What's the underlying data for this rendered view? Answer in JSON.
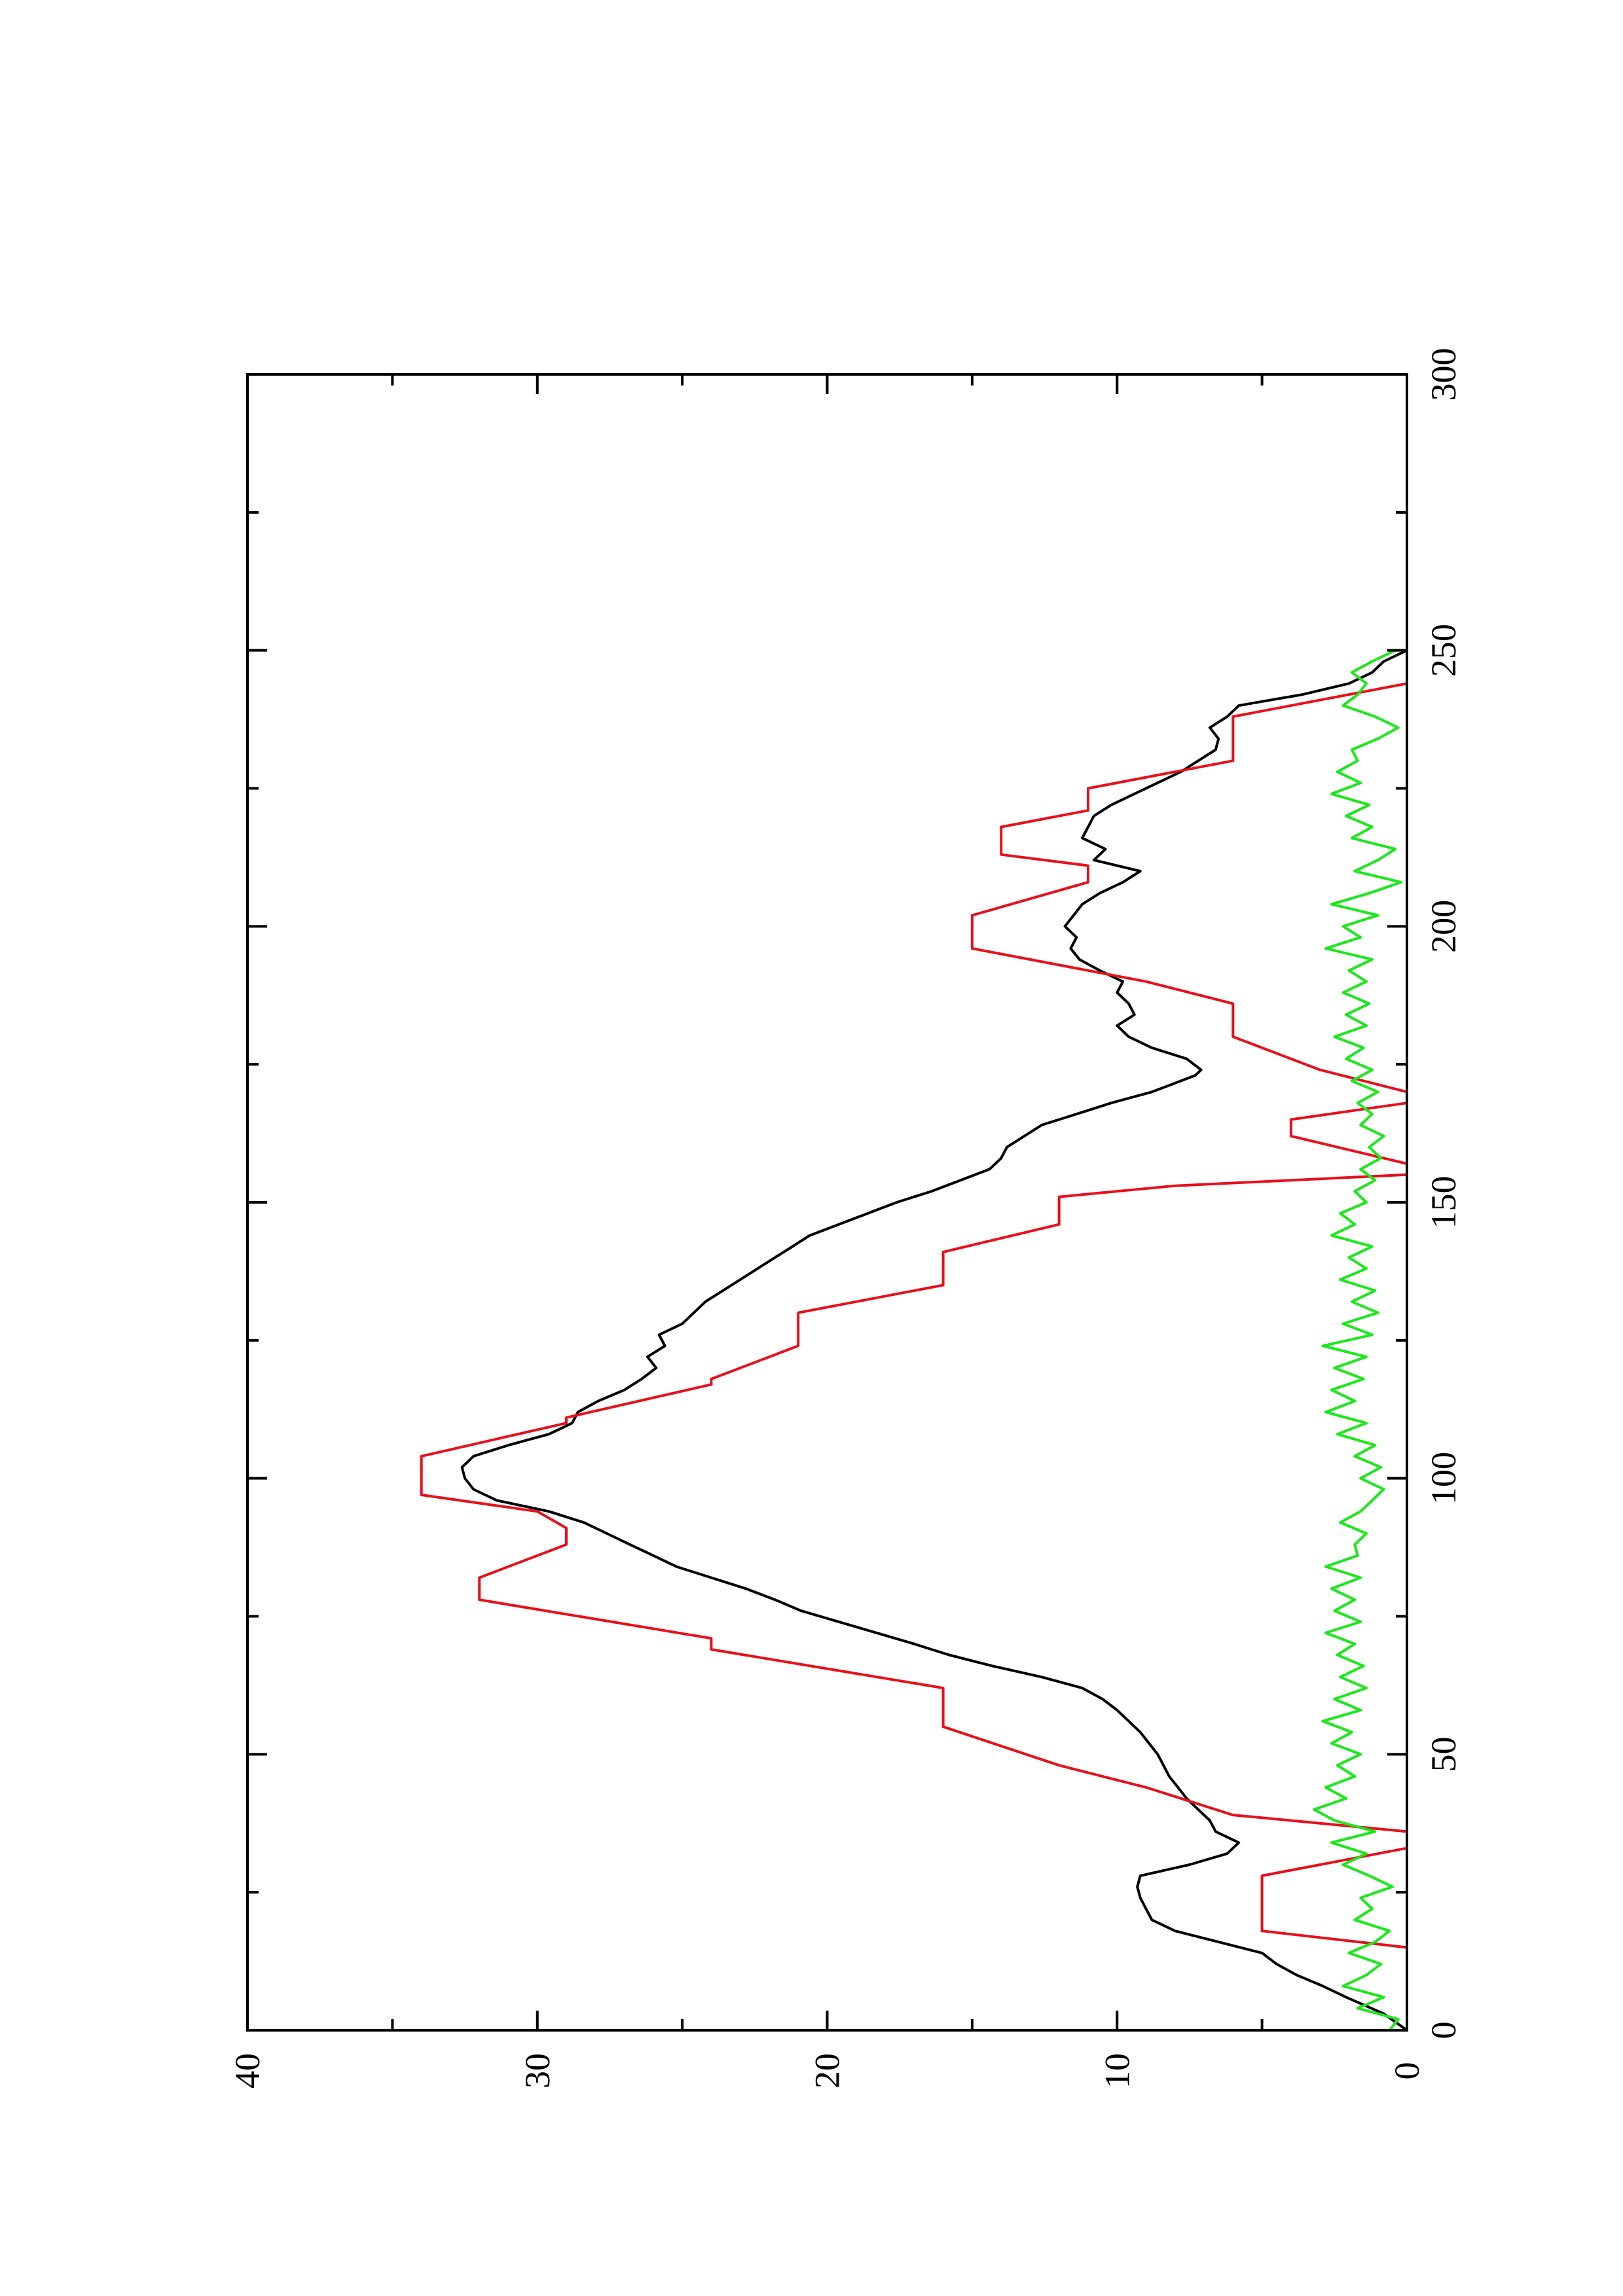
{
  "chart_data": {
    "type": "line",
    "orientation": "rotated 90 degrees counter-clockwise (x axis drawn vertically, increasing upward; y axis drawn horizontally, increasing to the left)",
    "title": "",
    "xlabel": "",
    "ylabel": "",
    "xlim": [
      0,
      300
    ],
    "ylim": [
      0,
      40
    ],
    "x_ticks": [
      0,
      50,
      100,
      150,
      200,
      250,
      300
    ],
    "y_ticks": [
      0,
      10,
      20,
      30,
      40
    ],
    "grid": false,
    "legend": "none",
    "series": [
      {
        "color": "#000000",
        "style": "smooth line",
        "points": [
          [
            0,
            0
          ],
          [
            3,
            0.8
          ],
          [
            6,
            2.1
          ],
          [
            8,
            2.9
          ],
          [
            10,
            3.8
          ],
          [
            12,
            4.5
          ],
          [
            14,
            5.0
          ],
          [
            16,
            6.5
          ],
          [
            18,
            8.0
          ],
          [
            20,
            8.8
          ],
          [
            22,
            9.0
          ],
          [
            24,
            9.2
          ],
          [
            26,
            9.3
          ],
          [
            28,
            9.2
          ],
          [
            30,
            7.5
          ],
          [
            32,
            6.2
          ],
          [
            34,
            5.8
          ],
          [
            36,
            6.6
          ],
          [
            38,
            6.8
          ],
          [
            40,
            7.2
          ],
          [
            42,
            7.6
          ],
          [
            44,
            7.9
          ],
          [
            46,
            8.2
          ],
          [
            48,
            8.4
          ],
          [
            50,
            8.6
          ],
          [
            52,
            8.9
          ],
          [
            54,
            9.2
          ],
          [
            56,
            9.6
          ],
          [
            58,
            10.0
          ],
          [
            60,
            10.5
          ],
          [
            62,
            11.2
          ],
          [
            64,
            12.6
          ],
          [
            66,
            14.3
          ],
          [
            68,
            15.8
          ],
          [
            70,
            17.0
          ],
          [
            72,
            18.3
          ],
          [
            74,
            19.6
          ],
          [
            76,
            20.9
          ],
          [
            78,
            21.8
          ],
          [
            80,
            22.8
          ],
          [
            82,
            24.0
          ],
          [
            84,
            25.2
          ],
          [
            86,
            26.0
          ],
          [
            88,
            26.8
          ],
          [
            90,
            27.6
          ],
          [
            92,
            28.4
          ],
          [
            94,
            29.6
          ],
          [
            96,
            31.4
          ],
          [
            98,
            32.2
          ],
          [
            100,
            32.5
          ],
          [
            102,
            32.6
          ],
          [
            104,
            32.2
          ],
          [
            106,
            31.0
          ],
          [
            108,
            29.6
          ],
          [
            110,
            28.8
          ],
          [
            112,
            28.6
          ],
          [
            114,
            27.9
          ],
          [
            116,
            27.0
          ],
          [
            118,
            26.4
          ],
          [
            120,
            25.9
          ],
          [
            122,
            26.2
          ],
          [
            124,
            25.6
          ],
          [
            126,
            25.8
          ],
          [
            128,
            25.0
          ],
          [
            130,
            24.6
          ],
          [
            132,
            24.2
          ],
          [
            134,
            23.6
          ],
          [
            136,
            23.0
          ],
          [
            138,
            22.4
          ],
          [
            140,
            21.8
          ],
          [
            142,
            21.2
          ],
          [
            144,
            20.6
          ],
          [
            146,
            19.6
          ],
          [
            148,
            18.6
          ],
          [
            150,
            17.6
          ],
          [
            152,
            16.4
          ],
          [
            154,
            15.4
          ],
          [
            156,
            14.4
          ],
          [
            158,
            14.0
          ],
          [
            160,
            13.8
          ],
          [
            162,
            13.2
          ],
          [
            164,
            12.6
          ],
          [
            166,
            11.4
          ],
          [
            168,
            10.2
          ],
          [
            170,
            8.8
          ],
          [
            172,
            7.8
          ],
          [
            173,
            7.3
          ],
          [
            174,
            7.1
          ],
          [
            176,
            7.6
          ],
          [
            178,
            8.8
          ],
          [
            180,
            9.6
          ],
          [
            182,
            10.0
          ],
          [
            184,
            9.4
          ],
          [
            186,
            9.6
          ],
          [
            188,
            10.0
          ],
          [
            190,
            9.8
          ],
          [
            192,
            10.6
          ],
          [
            194,
            11.3
          ],
          [
            196,
            11.6
          ],
          [
            198,
            11.4
          ],
          [
            200,
            11.8
          ],
          [
            202,
            11.5
          ],
          [
            204,
            11.2
          ],
          [
            206,
            10.6
          ],
          [
            208,
            9.8
          ],
          [
            210,
            9.2
          ],
          [
            212,
            10.8
          ],
          [
            214,
            10.4
          ],
          [
            216,
            11.2
          ],
          [
            218,
            11.0
          ],
          [
            220,
            10.8
          ],
          [
            222,
            10.2
          ],
          [
            224,
            9.4
          ],
          [
            226,
            8.6
          ],
          [
            228,
            7.8
          ],
          [
            230,
            7.2
          ],
          [
            232,
            6.6
          ],
          [
            234,
            6.5
          ],
          [
            236,
            6.8
          ],
          [
            238,
            6.2
          ],
          [
            240,
            5.8
          ],
          [
            242,
            3.6
          ],
          [
            244,
            2.0
          ],
          [
            246,
            1.2
          ],
          [
            248,
            0.8
          ],
          [
            250,
            0.0
          ]
        ]
      },
      {
        "color": "#e8101a",
        "style": "step",
        "points": [
          [
            0,
            0
          ],
          [
            14,
            0
          ],
          [
            15,
            0
          ],
          [
            18,
            5
          ],
          [
            28,
            5
          ],
          [
            33,
            0
          ],
          [
            36,
            0
          ],
          [
            39,
            6
          ],
          [
            44,
            9
          ],
          [
            48,
            12
          ],
          [
            55,
            16
          ],
          [
            62,
            16
          ],
          [
            69,
            24
          ],
          [
            71,
            24
          ],
          [
            78,
            32
          ],
          [
            82,
            32
          ],
          [
            88,
            29
          ],
          [
            91,
            29
          ],
          [
            94,
            30
          ],
          [
            97,
            34
          ],
          [
            104,
            34
          ],
          [
            110,
            29
          ],
          [
            111,
            29
          ],
          [
            117,
            24
          ],
          [
            118,
            24
          ],
          [
            124,
            21
          ],
          [
            130,
            21
          ],
          [
            135,
            16
          ],
          [
            141,
            16
          ],
          [
            146,
            12
          ],
          [
            151,
            12
          ],
          [
            153,
            8
          ],
          [
            155,
            0
          ],
          [
            157,
            0
          ],
          [
            162,
            4
          ],
          [
            165,
            4
          ],
          [
            168,
            0
          ],
          [
            170,
            0
          ],
          [
            174,
            3
          ],
          [
            180,
            6
          ],
          [
            186,
            6
          ],
          [
            190,
            9
          ],
          [
            193,
            12
          ],
          [
            196,
            15
          ],
          [
            202,
            15
          ],
          [
            208,
            11
          ],
          [
            211,
            11
          ],
          [
            213,
            14
          ],
          [
            218,
            14
          ],
          [
            221,
            11
          ],
          [
            225,
            11
          ],
          [
            230,
            6
          ],
          [
            238,
            6
          ],
          [
            244,
            0
          ],
          [
            250,
            0
          ]
        ]
      },
      {
        "color": "#1ae81a",
        "style": "noisy line",
        "points": [
          [
            0,
            0.6
          ],
          [
            2,
            0.3
          ],
          [
            4,
            1.7
          ],
          [
            6,
            0.8
          ],
          [
            8,
            2.2
          ],
          [
            10,
            1.4
          ],
          [
            12,
            0.9
          ],
          [
            14,
            2.0
          ],
          [
            16,
            1.1
          ],
          [
            18,
            0.6
          ],
          [
            20,
            1.8
          ],
          [
            22,
            1.2
          ],
          [
            24,
            1.6
          ],
          [
            26,
            0.5
          ],
          [
            28,
            1.3
          ],
          [
            30,
            2.2
          ],
          [
            32,
            1.4
          ],
          [
            34,
            2.6
          ],
          [
            36,
            1.1
          ],
          [
            38,
            2.5
          ],
          [
            40,
            3.2
          ],
          [
            42,
            2.1
          ],
          [
            44,
            2.8
          ],
          [
            46,
            1.8
          ],
          [
            48,
            2.4
          ],
          [
            50,
            1.6
          ],
          [
            52,
            2.6
          ],
          [
            54,
            1.9
          ],
          [
            56,
            2.9
          ],
          [
            58,
            1.6
          ],
          [
            60,
            2.5
          ],
          [
            62,
            1.4
          ],
          [
            64,
            2.3
          ],
          [
            66,
            1.5
          ],
          [
            68,
            2.4
          ],
          [
            70,
            1.8
          ],
          [
            72,
            2.8
          ],
          [
            74,
            1.6
          ],
          [
            76,
            2.5
          ],
          [
            78,
            1.8
          ],
          [
            80,
            2.6
          ],
          [
            82,
            1.6
          ],
          [
            84,
            2.8
          ],
          [
            86,
            1.7
          ],
          [
            88,
            1.8
          ],
          [
            90,
            1.4
          ],
          [
            92,
            2.3
          ],
          [
            94,
            1.6
          ],
          [
            96,
            1.2
          ],
          [
            98,
            0.8
          ],
          [
            100,
            1.6
          ],
          [
            102,
            0.9
          ],
          [
            104,
            1.8
          ],
          [
            106,
            1.1
          ],
          [
            108,
            2.4
          ],
          [
            110,
            1.4
          ],
          [
            112,
            2.8
          ],
          [
            114,
            1.8
          ],
          [
            116,
            2.6
          ],
          [
            118,
            1.5
          ],
          [
            120,
            2.5
          ],
          [
            122,
            1.4
          ],
          [
            124,
            2.9
          ],
          [
            126,
            1.2
          ],
          [
            128,
            2.2
          ],
          [
            130,
            1.0
          ],
          [
            132,
            1.9
          ],
          [
            134,
            1.1
          ],
          [
            136,
            2.3
          ],
          [
            138,
            1.4
          ],
          [
            140,
            2.0
          ],
          [
            142,
            1.2
          ],
          [
            144,
            2.6
          ],
          [
            146,
            1.8
          ],
          [
            148,
            2.3
          ],
          [
            150,
            1.4
          ],
          [
            152,
            1.8
          ],
          [
            154,
            1.1
          ],
          [
            156,
            1.6
          ],
          [
            158,
            0.9
          ],
          [
            160,
            1.3
          ],
          [
            162,
            0.8
          ],
          [
            164,
            1.6
          ],
          [
            166,
            1.2
          ],
          [
            168,
            1.7
          ],
          [
            170,
            1.0
          ],
          [
            172,
            1.9
          ],
          [
            174,
            1.2
          ],
          [
            176,
            2.1
          ],
          [
            178,
            1.5
          ],
          [
            180,
            2.5
          ],
          [
            182,
            1.4
          ],
          [
            184,
            2.1
          ],
          [
            186,
            1.3
          ],
          [
            188,
            2.2
          ],
          [
            190,
            1.4
          ],
          [
            192,
            2.0
          ],
          [
            194,
            1.2
          ],
          [
            196,
            2.8
          ],
          [
            198,
            1.6
          ],
          [
            200,
            2.2
          ],
          [
            202,
            1.0
          ],
          [
            204,
            2.6
          ],
          [
            206,
            1.3
          ],
          [
            208,
            0.2
          ],
          [
            210,
            1.8
          ],
          [
            212,
            1.0
          ],
          [
            214,
            0.4
          ],
          [
            216,
            1.9
          ],
          [
            218,
            1.2
          ],
          [
            220,
            2.1
          ],
          [
            222,
            1.3
          ],
          [
            224,
            2.6
          ],
          [
            226,
            1.6
          ],
          [
            228,
            2.4
          ],
          [
            230,
            1.7
          ],
          [
            232,
            1.9
          ],
          [
            234,
            1.0
          ],
          [
            236,
            0.3
          ],
          [
            238,
            1.1
          ],
          [
            240,
            2.2
          ],
          [
            242,
            1.7
          ],
          [
            244,
            1.4
          ],
          [
            246,
            1.9
          ],
          [
            248,
            1.2
          ],
          [
            250,
            0.4
          ]
        ]
      }
    ]
  }
}
